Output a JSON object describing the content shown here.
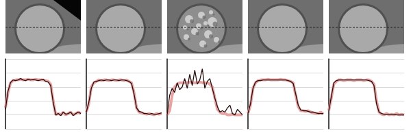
{
  "chart_data": [
    {
      "type": "line",
      "grid": true,
      "tick_labels": false,
      "xlim": [
        0,
        30
      ],
      "xticks": [
        0,
        30
      ],
      "ylim": [
        0,
        5
      ],
      "yticks": [
        0,
        1,
        2,
        3,
        4,
        5
      ],
      "x": [
        0,
        1,
        2,
        3,
        4,
        5,
        6,
        7,
        8,
        9,
        10,
        11,
        12,
        13,
        14,
        15,
        16,
        17,
        18,
        19,
        20,
        21,
        22,
        23,
        24,
        25,
        26,
        27,
        28,
        29,
        30
      ],
      "series": [
        {
          "color": "#e8a3a3",
          "values": [
            1.5,
            2.6,
            3.3,
            3.45,
            3.5,
            3.5,
            3.55,
            3.5,
            3.5,
            3.55,
            3.5,
            3.5,
            3.55,
            3.5,
            3.5,
            3.5,
            3.45,
            3.4,
            3.2,
            2.0,
            1.0,
            1.1,
            1.0,
            1.2,
            1.0,
            1.1,
            1.2,
            1.0,
            1.1,
            1.2,
            1.1
          ]
        },
        {
          "color": "#2a0d0d",
          "values": [
            1.4,
            2.7,
            3.3,
            3.5,
            3.45,
            3.5,
            3.6,
            3.5,
            3.45,
            3.55,
            3.5,
            3.55,
            3.5,
            3.45,
            3.5,
            3.55,
            3.4,
            3.35,
            3.1,
            1.9,
            1.0,
            1.1,
            0.95,
            1.2,
            1.05,
            1.1,
            1.2,
            0.95,
            1.1,
            1.2,
            1.1
          ]
        }
      ]
    },
    {
      "type": "line",
      "grid": true,
      "tick_labels": false,
      "xlim": [
        0,
        30
      ],
      "xticks": [
        0,
        30
      ],
      "ylim": [
        0,
        5
      ],
      "yticks": [
        0,
        1,
        2,
        3,
        4,
        5
      ],
      "x": [
        0,
        1,
        2,
        3,
        4,
        5,
        6,
        7,
        8,
        9,
        10,
        11,
        12,
        13,
        14,
        15,
        16,
        17,
        18,
        19,
        20,
        21,
        22,
        23,
        24,
        25,
        26,
        27,
        28,
        29,
        30
      ],
      "series": [
        {
          "color": "#e8a3a3",
          "values": [
            1.2,
            1.8,
            3.0,
            3.3,
            3.4,
            3.5,
            3.45,
            3.5,
            3.5,
            3.45,
            3.5,
            3.5,
            3.45,
            3.5,
            3.5,
            3.45,
            3.5,
            3.4,
            3.3,
            2.6,
            1.5,
            1.2,
            1.15,
            1.1,
            1.05,
            1.1,
            1.05,
            1.0,
            1.1,
            1.05,
            1.1
          ]
        },
        {
          "color": "#2a0d0d",
          "values": [
            1.2,
            1.9,
            2.9,
            3.35,
            3.4,
            3.45,
            3.5,
            3.45,
            3.5,
            3.5,
            3.45,
            3.5,
            3.5,
            3.45,
            3.5,
            3.5,
            3.45,
            3.4,
            3.25,
            2.5,
            1.5,
            1.25,
            1.2,
            1.1,
            1.1,
            1.05,
            1.1,
            1.05,
            1.05,
            1.1,
            1.15
          ]
        }
      ]
    },
    {
      "type": "line",
      "grid": true,
      "tick_labels": false,
      "xlim": [
        0,
        30
      ],
      "xticks": [
        0,
        30
      ],
      "ylim": [
        0,
        5
      ],
      "yticks": [
        0,
        1,
        2,
        3,
        4,
        5
      ],
      "x": [
        0,
        1,
        2,
        3,
        4,
        5,
        6,
        7,
        8,
        9,
        10,
        11,
        12,
        13,
        14,
        15,
        16,
        17,
        18,
        19,
        20,
        21,
        22,
        23,
        24,
        25,
        26,
        27,
        28,
        29,
        30
      ],
      "series": [
        {
          "color": "#e8a3a3",
          "values": [
            1.0,
            1.3,
            2.4,
            3.0,
            3.2,
            3.3,
            3.3,
            3.3,
            3.3,
            3.35,
            3.3,
            3.3,
            3.3,
            3.35,
            3.3,
            3.3,
            3.3,
            3.2,
            3.0,
            2.2,
            1.4,
            1.2,
            1.1,
            1.1,
            1.0,
            1.0,
            1.05,
            1.0,
            1.0,
            1.0,
            1.0
          ]
        },
        {
          "color": "#2a0d0d",
          "values": [
            1.0,
            2.4,
            2.9,
            2.6,
            3.3,
            2.8,
            3.0,
            3.6,
            2.9,
            3.9,
            3.1,
            4.2,
            3.2,
            3.5,
            4.3,
            2.9,
            3.4,
            3.6,
            2.9,
            2.2,
            1.6,
            1.2,
            1.3,
            1.2,
            1.5,
            1.7,
            1.1,
            1.0,
            1.4,
            1.2,
            1.0
          ]
        }
      ]
    },
    {
      "type": "line",
      "grid": true,
      "tick_labels": false,
      "xlim": [
        0,
        30
      ],
      "xticks": [
        0,
        30
      ],
      "ylim": [
        0,
        5
      ],
      "yticks": [
        0,
        1,
        2,
        3,
        4,
        5
      ],
      "x": [
        0,
        1,
        2,
        3,
        4,
        5,
        6,
        7,
        8,
        9,
        10,
        11,
        12,
        13,
        14,
        15,
        16,
        17,
        18,
        19,
        20,
        21,
        22,
        23,
        24,
        25,
        26,
        27,
        28,
        29,
        30
      ],
      "series": [
        {
          "color": "#e8a3a3",
          "values": [
            1.1,
            1.7,
            2.9,
            3.3,
            3.45,
            3.5,
            3.5,
            3.5,
            3.55,
            3.5,
            3.5,
            3.5,
            3.5,
            3.55,
            3.5,
            3.5,
            3.45,
            3.4,
            3.3,
            2.4,
            1.6,
            1.3,
            1.3,
            1.25,
            1.3,
            1.2,
            1.15,
            1.1,
            1.1,
            1.2,
            1.05
          ]
        },
        {
          "color": "#2a0d0d",
          "values": [
            1.1,
            1.8,
            2.9,
            3.35,
            3.45,
            3.45,
            3.5,
            3.5,
            3.5,
            3.5,
            3.5,
            3.5,
            3.5,
            3.5,
            3.5,
            3.5,
            3.45,
            3.4,
            3.25,
            2.5,
            1.7,
            1.35,
            1.3,
            1.3,
            1.25,
            1.2,
            1.2,
            1.15,
            1.1,
            1.1,
            1.1
          ]
        }
      ]
    },
    {
      "type": "line",
      "grid": true,
      "tick_labels": false,
      "xlim": [
        0,
        30
      ],
      "xticks": [
        0,
        30
      ],
      "ylim": [
        0,
        5
      ],
      "yticks": [
        0,
        1,
        2,
        3,
        4,
        5
      ],
      "x": [
        0,
        1,
        2,
        3,
        4,
        5,
        6,
        7,
        8,
        9,
        10,
        11,
        12,
        13,
        14,
        15,
        16,
        17,
        18,
        19,
        20,
        21,
        22,
        23,
        24,
        25,
        26,
        27,
        28,
        29,
        30
      ],
      "series": [
        {
          "color": "#e8a3a3",
          "values": [
            1.3,
            2.2,
            3.2,
            3.4,
            3.5,
            3.5,
            3.45,
            3.5,
            3.5,
            3.5,
            3.45,
            3.5,
            3.5,
            3.5,
            3.45,
            3.5,
            3.5,
            3.4,
            3.2,
            2.0,
            1.2,
            1.05,
            1.0,
            1.1,
            1.0,
            1.05,
            1.0,
            1.1,
            1.0,
            1.05,
            1.0
          ]
        },
        {
          "color": "#2a0d0d",
          "values": [
            1.3,
            2.3,
            3.3,
            3.45,
            3.5,
            3.5,
            3.5,
            3.5,
            3.5,
            3.5,
            3.5,
            3.5,
            3.5,
            3.5,
            3.5,
            3.5,
            3.45,
            3.4,
            3.1,
            1.8,
            1.2,
            1.1,
            1.05,
            1.05,
            1.05,
            1.05,
            1.05,
            1.0,
            1.0,
            1.0,
            1.0
          ]
        }
      ]
    }
  ]
}
